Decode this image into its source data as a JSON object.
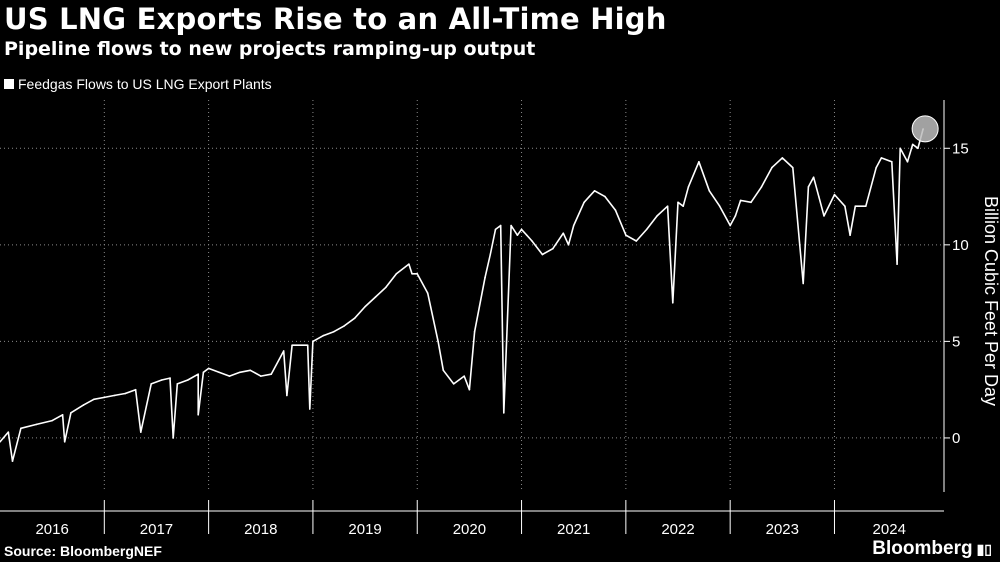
{
  "header": {
    "title": "US LNG Exports Rise to an All-Time High",
    "subtitle": "Pipeline flows to new projects ramping-up output"
  },
  "legend": {
    "label": "Feedgas Flows to US LNG Export Plants"
  },
  "footer": {
    "source": "Source: BloombergNEF",
    "brand": "Bloomberg",
    "brand_icon": "bar-chart-icon"
  },
  "colors": {
    "background": "#000000",
    "line": "#ffffff",
    "grid": "#8a8a8a",
    "marker": "#bdbdbd"
  },
  "chart_data": {
    "type": "line",
    "title": "US LNG Exports Rise to an All-Time High",
    "subtitle": "Pipeline flows to new projects ramping-up output",
    "xlabel": "",
    "ylabel": "Billion Cubic Feet Per Day",
    "xlim": [
      2016.0,
      2025.05
    ],
    "ylim": [
      -2.8,
      17.5
    ],
    "yticks": [
      0,
      5,
      10,
      15
    ],
    "ytick_labels": [
      "0",
      "5",
      "10",
      "15"
    ],
    "xticks": [
      2016,
      2017,
      2018,
      2019,
      2020,
      2021,
      2022,
      2023,
      2024
    ],
    "xtick_labels": [
      "2016",
      "2017",
      "2018",
      "2019",
      "2020",
      "2021",
      "2022",
      "2023",
      "2024"
    ],
    "grid": "vertical dotted",
    "legend_position": "top-left",
    "series": [
      {
        "name": "Feedgas Flows to US LNG Export Plants",
        "x": [
          2016.0,
          2016.08,
          2016.12,
          2016.2,
          2016.35,
          2016.5,
          2016.6,
          2016.62,
          2016.68,
          2016.8,
          2016.9,
          2017.0,
          2017.1,
          2017.2,
          2017.3,
          2017.35,
          2017.45,
          2017.55,
          2017.63,
          2017.66,
          2017.7,
          2017.8,
          2017.9,
          2017.9,
          2017.95,
          2018.0,
          2018.1,
          2018.2,
          2018.3,
          2018.4,
          2018.5,
          2018.6,
          2018.72,
          2018.75,
          2018.8,
          2018.95,
          2018.97,
          2019.0,
          2019.1,
          2019.2,
          2019.3,
          2019.4,
          2019.5,
          2019.6,
          2019.7,
          2019.8,
          2019.92,
          2019.95,
          2020.0,
          2020.1,
          2020.2,
          2020.25,
          2020.35,
          2020.45,
          2020.5,
          2020.55,
          2020.65,
          2020.7,
          2020.75,
          2020.8,
          2020.83,
          2020.9,
          2020.96,
          2021.0,
          2021.05,
          2021.1,
          2021.2,
          2021.3,
          2021.4,
          2021.45,
          2021.5,
          2021.6,
          2021.65,
          2021.7,
          2021.8,
          2021.9,
          2022.0,
          2022.1,
          2022.2,
          2022.3,
          2022.4,
          2022.45,
          2022.5,
          2022.55,
          2022.6,
          2022.7,
          2022.8,
          2022.9,
          2023.0,
          2023.05,
          2023.1,
          2023.2,
          2023.3,
          2023.4,
          2023.5,
          2023.6,
          2023.7,
          2023.75,
          2023.8,
          2023.85,
          2023.9,
          2024.0,
          2024.1,
          2024.15,
          2024.2,
          2024.3,
          2024.4,
          2024.45,
          2024.55,
          2024.6,
          2024.63,
          2024.7,
          2024.75,
          2024.8,
          2024.85
        ],
        "values": [
          -0.2,
          0.3,
          -1.2,
          0.5,
          0.7,
          0.9,
          1.2,
          -0.2,
          1.3,
          1.7,
          2.0,
          2.1,
          2.2,
          2.3,
          2.5,
          0.3,
          2.8,
          3.0,
          3.1,
          0.0,
          2.8,
          3.0,
          3.3,
          1.2,
          3.4,
          3.6,
          3.4,
          3.2,
          3.4,
          3.5,
          3.2,
          3.3,
          4.5,
          2.2,
          4.8,
          4.8,
          1.5,
          5.0,
          5.3,
          5.5,
          5.8,
          6.2,
          6.8,
          7.3,
          7.8,
          8.5,
          9.0,
          8.5,
          8.5,
          7.5,
          5.0,
          3.5,
          2.8,
          3.2,
          2.5,
          5.5,
          8.3,
          9.5,
          10.8,
          11.0,
          1.3,
          11.0,
          10.5,
          10.8,
          10.5,
          10.2,
          9.5,
          9.8,
          10.6,
          10.0,
          11.0,
          12.2,
          12.5,
          12.8,
          12.5,
          11.8,
          10.5,
          10.2,
          10.8,
          11.5,
          12.0,
          7.0,
          12.2,
          12.0,
          13.0,
          14.3,
          12.8,
          12.0,
          11.0,
          11.5,
          12.3,
          12.2,
          13.0,
          14.0,
          14.5,
          14.0,
          8.0,
          13.0,
          13.5,
          12.5,
          11.5,
          12.6,
          12.0,
          10.5,
          12.0,
          12.0,
          14.0,
          14.5,
          14.3,
          9.0,
          15.0,
          14.3,
          15.2,
          15.0,
          16.0
        ]
      }
    ],
    "annotations": [
      {
        "type": "circle-marker",
        "x": 2024.85,
        "y": 15.8,
        "note": "all-time high"
      }
    ]
  }
}
